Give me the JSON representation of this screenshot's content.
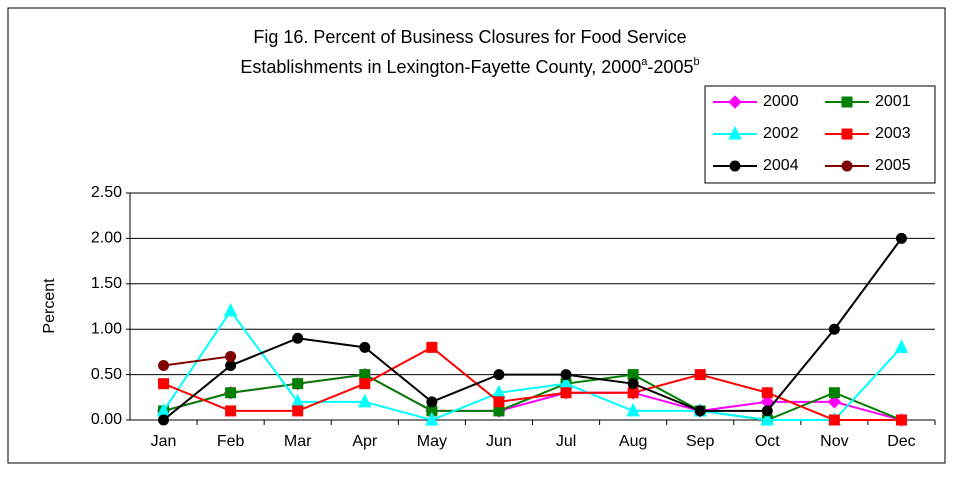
{
  "chart_data": {
    "type": "line",
    "title": [
      "Fig 16. Percent of Business Closures for Food Service",
      [
        "Establishments in Lexington-Fayette County, 2000",
        "a",
        "-2005",
        "b"
      ]
    ],
    "y_label": "Percent",
    "categories": [
      "Jan",
      "Feb",
      "Mar",
      "Apr",
      "May",
      "Jun",
      "Jul",
      "Aug",
      "Sep",
      "Oct",
      "Nov",
      "Dec"
    ],
    "series": [
      {
        "name": "2000",
        "color": "#ff00ff",
        "marker": "diamond",
        "values": [
          0.1,
          0.3,
          0.4,
          0.5,
          0.1,
          0.1,
          0.3,
          0.3,
          0.1,
          0.2,
          0.2,
          0
        ]
      },
      {
        "name": "2001",
        "color": "#008000",
        "marker": "square",
        "values": [
          0.1,
          0.3,
          0.4,
          0.5,
          0.1,
          0.1,
          0.4,
          0.5,
          0.1,
          0,
          0.3,
          0
        ]
      },
      {
        "name": "2002",
        "color": "#00ffff",
        "marker": "triangle",
        "values": [
          0.1,
          1.2,
          0.2,
          0.2,
          0,
          0.3,
          0.4,
          0.1,
          0.1,
          0,
          0,
          0.8
        ]
      },
      {
        "name": "2003",
        "color": "#ff0000",
        "marker": "square",
        "values": [
          0.4,
          0.1,
          0.1,
          0.4,
          0.8,
          0.2,
          0.3,
          0.3,
          0.5,
          0.3,
          0,
          0
        ]
      },
      {
        "name": "2004",
        "color": "#000000",
        "marker": "circle",
        "values": [
          0,
          0.6,
          0.9,
          0.8,
          0.2,
          0.5,
          0.5,
          0.4,
          0.1,
          0.1,
          1.0,
          2.0
        ]
      },
      {
        "name": "2005",
        "color": "#800000",
        "marker": "circle",
        "values": [
          0.6,
          0.7,
          null,
          null,
          null,
          null,
          null,
          null,
          null,
          null,
          null,
          null
        ]
      }
    ],
    "ylim": [
      0,
      2.5
    ],
    "yticks": [
      {
        "value": 0,
        "label": "0.00"
      },
      {
        "value": 0.5,
        "label": "0.50"
      },
      {
        "value": 1,
        "label": "1.00"
      },
      {
        "value": 1.5,
        "label": "1.50"
      },
      {
        "value": 2,
        "label": "2.00"
      },
      {
        "value": 2.5,
        "label": "2.50"
      }
    ],
    "grid": true,
    "legend": "upper right"
  }
}
